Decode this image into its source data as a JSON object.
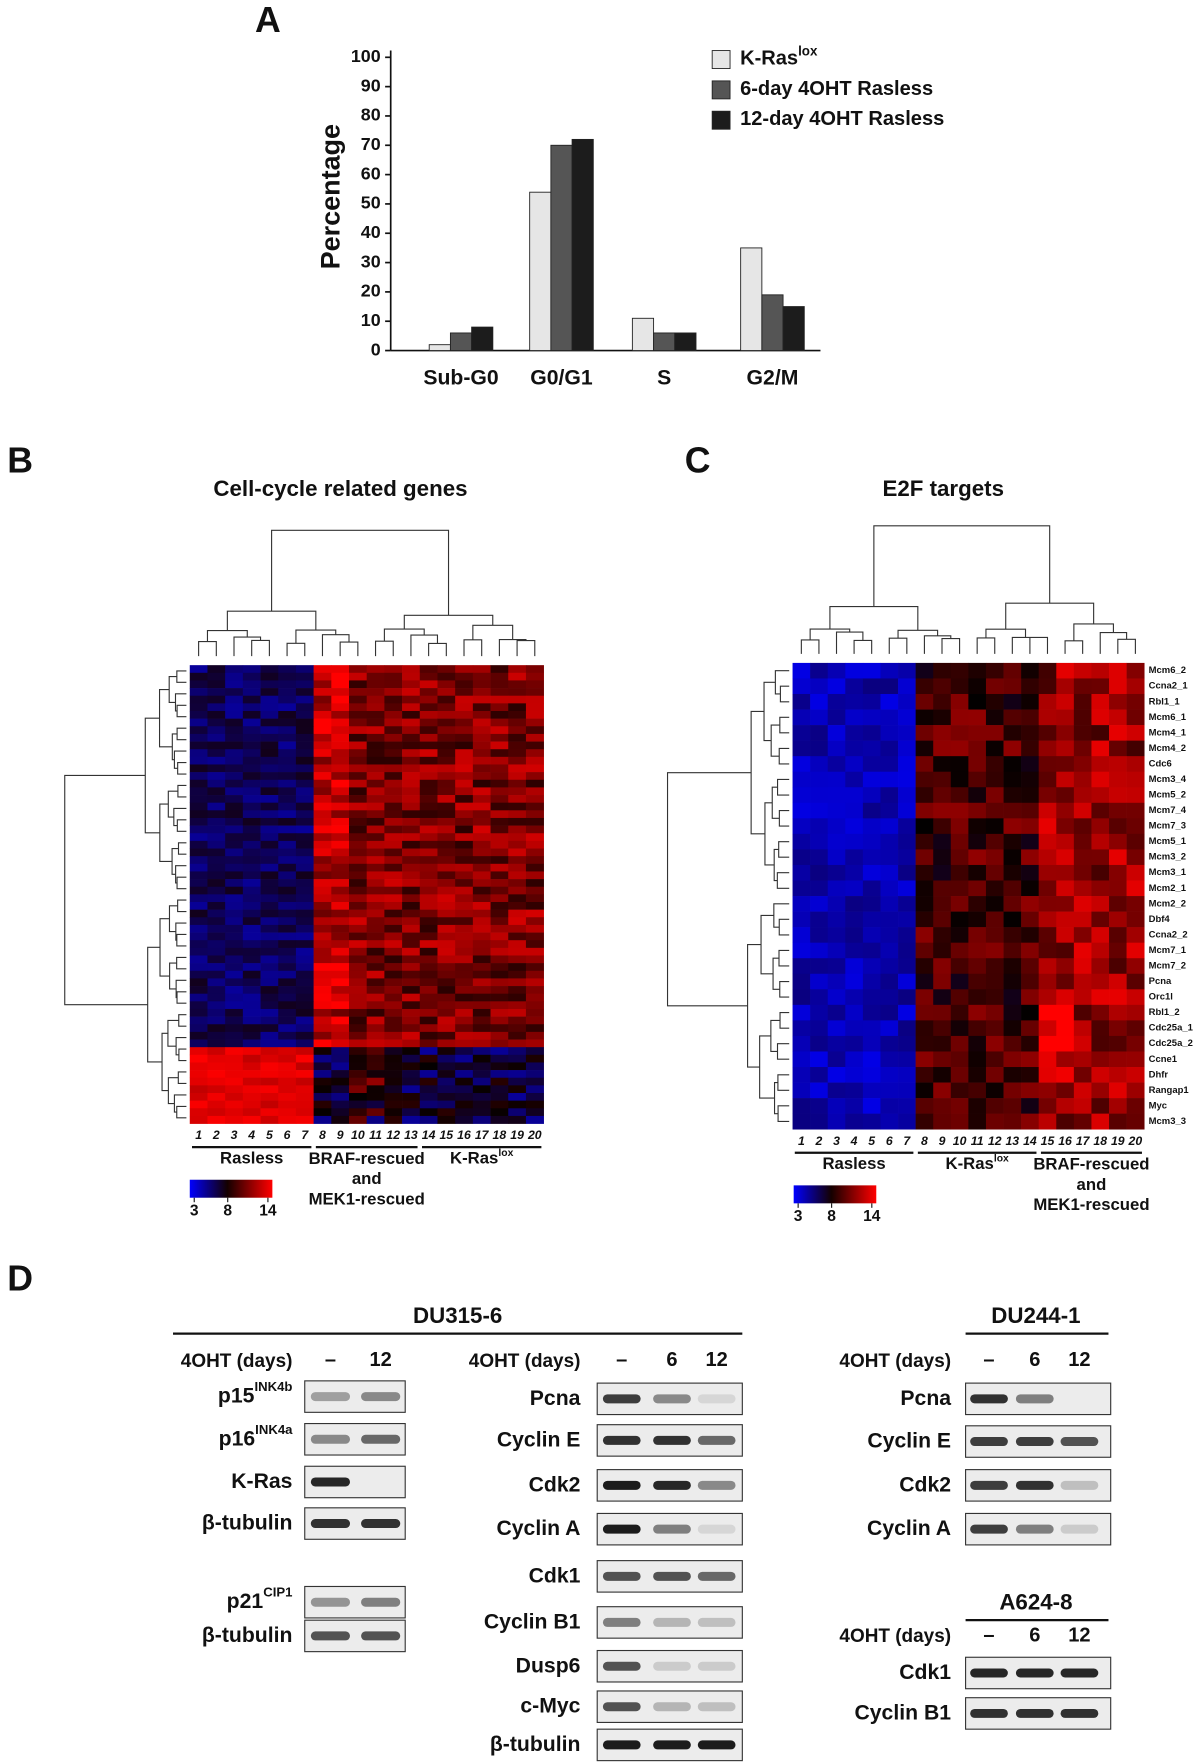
{
  "panel_labels": {
    "a": "A",
    "b": "B",
    "c": "C",
    "d": "D"
  },
  "chart_data": {
    "type": "bar",
    "y_label": "Percentage",
    "categories": [
      "Sub-G0",
      "G0/G1",
      "S",
      "G2/M"
    ],
    "series": [
      {
        "name": "K-Ras",
        "name_sup": "lox",
        "color": "#e6e6e6",
        "values": [
          2,
          54,
          11,
          35
        ]
      },
      {
        "name": "6-day 4OHT Rasless",
        "color": "#555555",
        "values": [
          6,
          70,
          6,
          19
        ]
      },
      {
        "name": "12-day 4OHT Rasless",
        "color": "#1c1c1c",
        "values": [
          8,
          72,
          6,
          15
        ]
      }
    ],
    "ylim": [
      0,
      100
    ],
    "yticks": [
      0,
      10,
      20,
      30,
      40,
      50,
      60,
      70,
      80,
      90,
      100
    ],
    "grid": false
  },
  "panel_b": {
    "title": "Cell-cycle related genes",
    "columns": [
      1,
      2,
      3,
      4,
      5,
      6,
      7,
      8,
      9,
      10,
      11,
      12,
      13,
      14,
      15,
      16,
      17,
      18,
      19,
      20
    ],
    "groups": [
      {
        "label": "Rasless"
      },
      {
        "label_lines": [
          "BRAF-rescued",
          "and",
          "MEK1-rescued"
        ]
      },
      {
        "label": "K-Ras",
        "sup": "lox"
      }
    ],
    "scale_ticks": [
      3,
      8,
      14
    ]
  },
  "panel_c": {
    "title": "E2F targets",
    "genes": [
      "Mcm6_2",
      "Ccna2_1",
      "Rbl1_1",
      "Mcm6_1",
      "Mcm4_1",
      "Mcm4_2",
      "Cdc6",
      "Mcm3_4",
      "Mcm5_2",
      "Mcm7_4",
      "Mcm7_3",
      "Mcm5_1",
      "Mcm3_2",
      "Mcm3_1",
      "Mcm2_1",
      "Mcm2_2",
      "Dbf4",
      "Ccna2_2",
      "Mcm7_1",
      "Mcm7_2",
      "Pcna",
      "Orc1l",
      "Rbl1_2",
      "Cdc25a_1",
      "Cdc25a_2",
      "Ccne1",
      "Dhfr",
      "Rangap1",
      "Myc",
      "Mcm3_3"
    ],
    "columns": [
      1,
      2,
      3,
      4,
      5,
      6,
      7,
      8,
      9,
      10,
      11,
      12,
      13,
      14,
      15,
      16,
      17,
      18,
      19,
      20
    ],
    "groups": [
      {
        "label": "Rasless"
      },
      {
        "label": "K-Ras",
        "sup": "lox"
      },
      {
        "label_lines": [
          "BRAF-rescued",
          "and",
          "MEK1-rescued"
        ]
      }
    ],
    "scale_ticks": [
      3,
      8,
      14
    ]
  },
  "panel_d": {
    "cell_lines": [
      {
        "title": "DU315-6",
        "sets": [
          {
            "axis_label": "4OHT (days)",
            "lanes": [
              "–",
              "12"
            ],
            "rows": [
              {
                "label": "p15",
                "sup": "INK4b"
              },
              {
                "label": "p16",
                "sup": "INK4a"
              },
              {
                "label": "K-Ras"
              },
              {
                "label": "β-tubulin"
              },
              {
                "label": "p21",
                "sup": "CIP1"
              },
              {
                "label": "β-tubulin"
              }
            ]
          },
          {
            "axis_label": "4OHT (days)",
            "lanes": [
              "–",
              "6",
              "12"
            ],
            "rows": [
              {
                "label": "Pcna"
              },
              {
                "label": "Cyclin E"
              },
              {
                "label": "Cdk2"
              },
              {
                "label": "Cyclin A"
              },
              {
                "label": "Cdk1"
              },
              {
                "label": "Cyclin B1"
              },
              {
                "label": "Dusp6"
              },
              {
                "label": "c-Myc"
              },
              {
                "label": "β-tubulin"
              }
            ]
          }
        ]
      },
      {
        "title": "DU244-1",
        "sets": [
          {
            "axis_label": "4OHT (days)",
            "lanes": [
              "–",
              "6",
              "12"
            ],
            "rows": [
              {
                "label": "Pcna"
              },
              {
                "label": "Cyclin E"
              },
              {
                "label": "Cdk2"
              },
              {
                "label": "Cyclin A"
              }
            ]
          }
        ]
      },
      {
        "title": "A624-8",
        "sets": [
          {
            "axis_label": "4OHT (days)",
            "lanes": [
              "–",
              "6",
              "12"
            ],
            "rows": [
              {
                "label": "Cdk1"
              },
              {
                "label": "Cyclin B1"
              }
            ]
          }
        ]
      }
    ]
  }
}
